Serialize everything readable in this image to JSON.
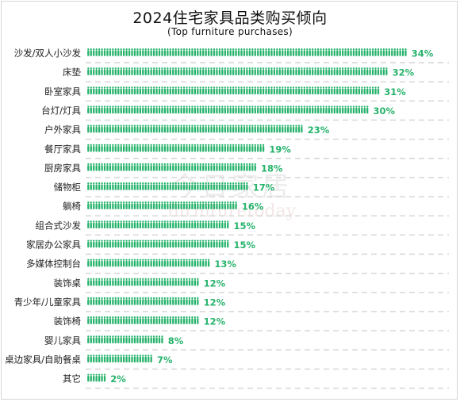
{
  "chart_data": {
    "type": "bar",
    "title": "2024住宅家具品类购买倾向",
    "subtitle": "(Top furniture purchases)",
    "watermark": {
      "cn": "今日家居",
      "en": "furnituretoday"
    },
    "categories": [
      "沙发/双人小沙发",
      "床垫",
      "卧室家具",
      "台灯/灯具",
      "户外家具",
      "餐厅家具",
      "厨房家具",
      "储物柜",
      "躺椅",
      "组合式沙发",
      "家居办公家具",
      "多媒体控制台",
      "装饰桌",
      "青少年/儿童家具",
      "装饰椅",
      "婴儿家具",
      "桌边家具/自助餐桌",
      "其它"
    ],
    "values": [
      34,
      32,
      31,
      30,
      23,
      19,
      18,
      17,
      16,
      15,
      15,
      13,
      12,
      12,
      12,
      8,
      7,
      2
    ],
    "value_labels": [
      "34%",
      "32%",
      "31%",
      "30%",
      "23%",
      "19%",
      "18%",
      "17%",
      "16%",
      "15%",
      "15%",
      "13%",
      "12%",
      "12%",
      "12%",
      "8%",
      "7%",
      "2%"
    ],
    "unit": "%",
    "xlim": [
      0,
      34
    ],
    "mark": "person-icon",
    "colors": {
      "bar": "#27b36c",
      "value_label": "#27b36c",
      "gridline": "#d4d4d4"
    },
    "grid": true
  }
}
